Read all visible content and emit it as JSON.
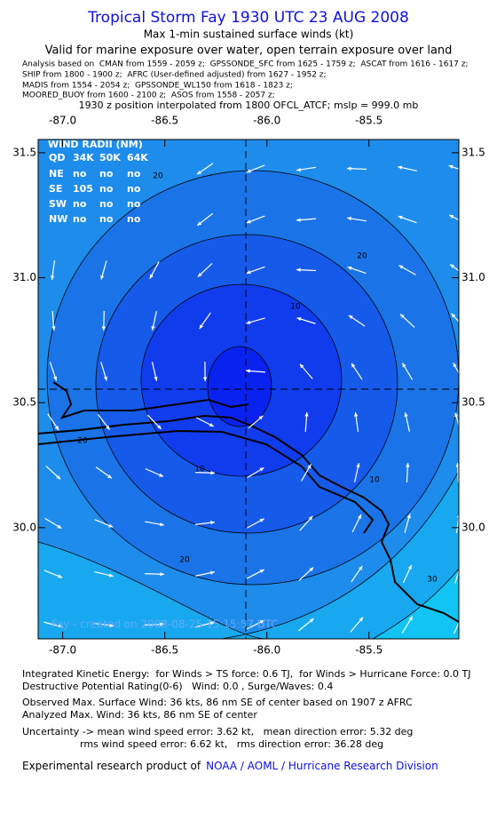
{
  "header": {
    "title": "Tropical Storm Fay 1930 UTC 23 AUG 2008",
    "subtitle": "Max 1-min sustained surface winds (kt)",
    "validity": "Valid for marine exposure over water, open terrain exposure over land",
    "sources": [
      "Analysis based on  CMAN from 1559 - 2059 z;  GPSSONDE_SFC from 1625 - 1759 z;  ASCAT from 1616 - 1617 z;",
      "SHIP from 1800 - 1900 z;  AFRC (User-defined adjusted) from 1627 - 1952 z;",
      "MADIS from 1554 - 2054 z;  GPSSONDE_WL150 from 1618 - 1823 z;",
      "MOORED_BUOY from 1600 - 2100 z;  ASOS from 1558 - 2057 z;"
    ],
    "position_note": "1930 z position interpolated from 1800 OFCL_ATCF; mslp = 999.0 mb"
  },
  "map": {
    "xlim": [
      -87.12,
      -85.06
    ],
    "ylim": [
      29.555,
      31.553
    ],
    "xticks": [
      {
        "value": -87.0,
        "label": "-87.0"
      },
      -86.5,
      {
        "value": -86.0,
        "label": "-86.0"
      },
      -85.5
    ],
    "yticks": [
      {
        "value": 30.0,
        "label": "30.0"
      },
      30.5,
      {
        "value": 31.0,
        "label": "31.0"
      },
      31.5
    ],
    "wind_radii": {
      "title": "WIND RADII (NM)",
      "header": [
        "QD",
        "34K",
        "50K",
        "64K"
      ],
      "rows": [
        [
          "NE",
          "no",
          "no",
          "no"
        ],
        [
          "SE",
          "105",
          "no",
          "no"
        ],
        [
          "SW",
          "no",
          "no",
          "no"
        ],
        [
          "NW",
          "no",
          "no",
          "no"
        ]
      ]
    },
    "contour_labels": [
      20,
      20,
      10,
      10,
      20,
      10,
      20,
      30
    ],
    "watermark": "Fay - created on 2008-08-25 15:15:57 UTC"
  },
  "footer": {
    "lines": [
      "Integrated Kinetic Energy:  for Winds > TS force: 0.6 TJ,  for Winds > Hurricane Force: 0.0 TJ",
      "Destructive Potential Rating(0-6)   Wind: 0.0 , Surge/Waves: 0.4",
      "Observed Max. Surface Wind: 36 kts, 86 nm SE of center based on 1907 z AFRC",
      "Analyzed Max. Wind: 36 kts, 86 nm SE of center",
      "Uncertainty -> mean wind speed error: 3.62 kt,   mean direction error: 5.32 deg",
      "rms wind speed error: 6.62 kt,   rms direction error: 36.28 deg"
    ],
    "credit_prefix": "Experimental research product of",
    "credit_link": "NOAA / AOML / Hurricane Research Division"
  }
}
